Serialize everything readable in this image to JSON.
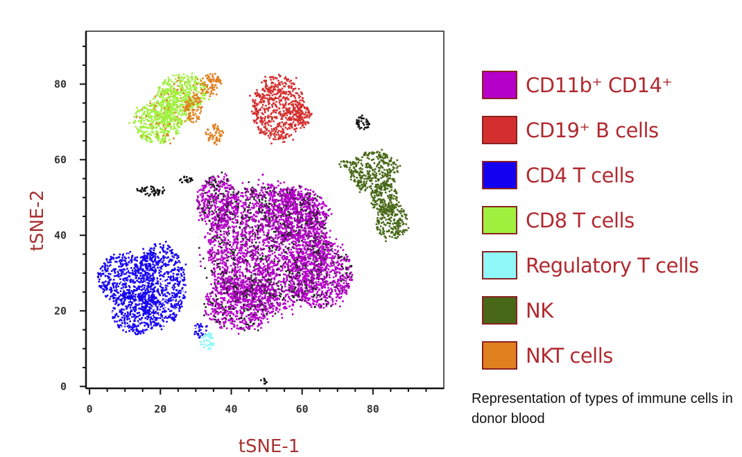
{
  "chart_data": {
    "type": "scatter",
    "xlabel": "tSNE-1",
    "ylabel": "tSNE-2",
    "xlim": [
      -1,
      100
    ],
    "ylim": [
      -0.5,
      94
    ],
    "x_ticks": [
      0,
      20,
      40,
      60,
      80
    ],
    "y_ticks": [
      0,
      20,
      40,
      60,
      80
    ],
    "minor_tick_step": 5,
    "grid": false,
    "legend_position": "right",
    "series": [
      {
        "name": "CD11b⁺ CD14⁺",
        "color": "#b400c8",
        "clusters": [
          {
            "cx": 50,
            "cy": 37,
            "rx": 17,
            "ry": 17
          },
          {
            "cx": 42,
            "cy": 22,
            "rx": 10,
            "ry": 7
          },
          {
            "cx": 65,
            "cy": 30,
            "rx": 9,
            "ry": 9
          },
          {
            "cx": 36,
            "cy": 49,
            "rx": 6,
            "ry": 7
          },
          {
            "cx": 58,
            "cy": 46,
            "rx": 9,
            "ry": 7
          }
        ]
      },
      {
        "name": "CD19⁺ B cells",
        "color": "#d42f2f",
        "clusters": [
          {
            "cx": 53,
            "cy": 74,
            "rx": 7.5,
            "ry": 8.5
          },
          {
            "cx": 59,
            "cy": 72,
            "rx": 3.5,
            "ry": 3
          }
        ]
      },
      {
        "name": "CD4 T cells",
        "color": "#1400f0",
        "clusters": [
          {
            "cx": 10,
            "cy": 29,
            "rx": 8,
            "ry": 7
          },
          {
            "cx": 20,
            "cy": 27,
            "rx": 7,
            "ry": 11
          },
          {
            "cx": 13,
            "cy": 20,
            "rx": 7,
            "ry": 6
          },
          {
            "cx": 31,
            "cy": 15,
            "rx": 2,
            "ry": 2
          }
        ]
      },
      {
        "name": "CD8 T cells",
        "color": "#a0f040",
        "clusters": [
          {
            "cx": 19,
            "cy": 70,
            "rx": 7,
            "ry": 5.5
          },
          {
            "cx": 26,
            "cy": 78,
            "rx": 7,
            "ry": 5
          },
          {
            "cx": 23,
            "cy": 74,
            "rx": 6,
            "ry": 5
          }
        ]
      },
      {
        "name": "Regulatory T cells",
        "color": "#90f8f8",
        "clusters": [
          {
            "cx": 33,
            "cy": 12,
            "rx": 2,
            "ry": 2.5
          }
        ]
      },
      {
        "name": "NK",
        "color": "#486818",
        "clusters": [
          {
            "cx": 80,
            "cy": 57,
            "rx": 7,
            "ry": 5.5
          },
          {
            "cx": 85,
            "cy": 44,
            "rx": 4.5,
            "ry": 5
          },
          {
            "cx": 83,
            "cy": 50,
            "rx": 4,
            "ry": 4
          },
          {
            "cx": 72,
            "cy": 59,
            "rx": 2,
            "ry": 1
          }
        ]
      },
      {
        "name": "NKT cells",
        "color": "#e08020",
        "clusters": [
          {
            "cx": 34,
            "cy": 80,
            "rx": 3,
            "ry": 3
          },
          {
            "cx": 35,
            "cy": 67,
            "rx": 2.5,
            "ry": 2.5
          },
          {
            "cx": 29,
            "cy": 74,
            "rx": 2.5,
            "ry": 4
          }
        ]
      },
      {
        "name": "",
        "color": "#111111",
        "clusters": [
          {
            "cx": 77,
            "cy": 70,
            "rx": 2,
            "ry": 2
          },
          {
            "cx": 17,
            "cy": 52,
            "rx": 4,
            "ry": 1.3
          },
          {
            "cx": 49,
            "cy": 1.5,
            "rx": 1,
            "ry": 1
          },
          {
            "cx": 27,
            "cy": 55,
            "rx": 2,
            "ry": 1
          }
        ]
      }
    ]
  },
  "caption": "Representation of types of immune cells in donor blood"
}
